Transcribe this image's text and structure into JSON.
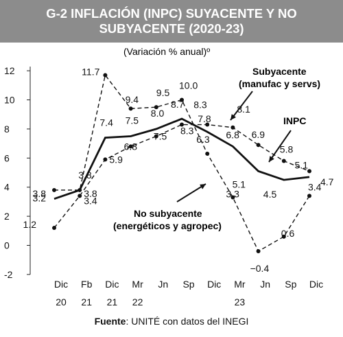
{
  "title_line1": "G-2 INFLACIÓN (INPC) SUYACENTE Y NO",
  "title_line2": "SUBYACENTE (2020-23)",
  "footer_label": "Fuente",
  "footer_text": ": UNITÉ con datos del INEGI",
  "chart_data": {
    "type": "line",
    "title": "G-2 INFLACIÓN (INPC) SUYACENTE Y NO SUBYACENTE (2020-23)",
    "subtitle": "(Variación % anual)º",
    "categories": [
      "Dic",
      "Fb",
      "Dic",
      "Mr",
      "Jn",
      "Sp",
      "Dic",
      "Mr",
      "Jn",
      "Sp",
      "Dic"
    ],
    "category_years": [
      "20",
      "21",
      "21",
      "22",
      "",
      "",
      "",
      "23",
      "",
      "",
      ""
    ],
    "ylim": [
      -2,
      12
    ],
    "yticks": [
      -2,
      0,
      2,
      4,
      6,
      8,
      10,
      12
    ],
    "grid": false,
    "series": [
      {
        "name": "INPC",
        "style": "solid-bold",
        "values": [
          3.2,
          3.8,
          7.4,
          7.5,
          8.0,
          8.7,
          7.8,
          6.8,
          5.1,
          4.5,
          4.7
        ],
        "labels": [
          "3.2",
          "3.8",
          "7.4",
          "7.5",
          "8.0",
          "8.7",
          "7.8",
          "6.8",
          "5.1",
          "4.5",
          "4.7"
        ]
      },
      {
        "name": "Subyacente (manufac y servs)",
        "style": "dashed",
        "values": [
          1.2,
          3.4,
          5.9,
          6.8,
          7.5,
          8.3,
          8.3,
          8.1,
          6.9,
          5.8,
          5.1
        ],
        "labels": [
          "1.2",
          "3.4",
          "5.9",
          "6.8",
          "7.5",
          "8.3",
          "8.3",
          "8.1",
          "6.9",
          "5.8",
          "5.1"
        ]
      },
      {
        "name": "No subyacente (energéticos y agropec)",
        "style": "dashed",
        "values": [
          3.8,
          3.8,
          11.7,
          9.4,
          9.5,
          10.0,
          6.3,
          3.3,
          -0.4,
          0.6,
          3.4
        ],
        "labels": [
          "3.8",
          "3.8",
          "11.7",
          "9.4",
          "9.5",
          "10.0",
          "6.3",
          "3.3",
          "−0.4",
          "0.6",
          "3.4"
        ]
      }
    ],
    "annotations": {
      "subyacente_l1": "Subyacente",
      "subyacente_l2": "(manufac y servs)",
      "inpc": "INPC",
      "nosub_l1": "No subyacente",
      "nosub_l2": "(energéticos y agropec)"
    }
  }
}
